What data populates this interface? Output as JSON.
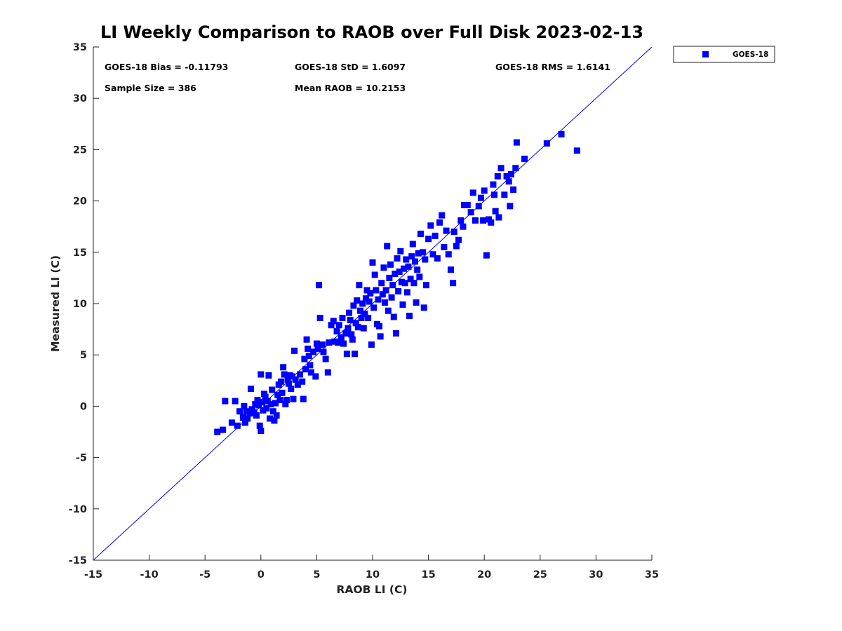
{
  "chart_data": {
    "type": "scatter",
    "title": "LI Weekly Comparison to RAOB over Full Disk 2023-02-13",
    "xlabel": "RAOB LI (C)",
    "ylabel": "Measured LI (C)",
    "xlim": [
      -15,
      35
    ],
    "ylim": [
      -15,
      35
    ],
    "xticks": [
      -15,
      -10,
      -5,
      0,
      5,
      10,
      15,
      20,
      25,
      30,
      35
    ],
    "yticks": [
      -15,
      -10,
      -5,
      0,
      5,
      10,
      15,
      20,
      25,
      30,
      35
    ],
    "grid": false,
    "legend_position": "outside-top-right",
    "reference_line": {
      "x": [
        -15,
        35
      ],
      "y": [
        -15,
        35
      ],
      "color": "#0000ff"
    },
    "stats": {
      "bias": "GOES-18 Bias = -0.11793",
      "std": "GOES-18 StD = 1.6097",
      "rms": "GOES-18 RMS = 1.6141",
      "sample_size": "Sample Size = 386",
      "mean_raob": "Mean RAOB = 10.2153"
    },
    "series": [
      {
        "name": "GOES-18",
        "color": "#0000ff",
        "marker": "square",
        "points": [
          [
            -3.9,
            -2.5
          ],
          [
            -3.4,
            -2.3
          ],
          [
            -3.2,
            0.5
          ],
          [
            -2.6,
            -1.6
          ],
          [
            -2.3,
            0.5
          ],
          [
            -2.1,
            -1.9
          ],
          [
            -1.9,
            -0.5
          ],
          [
            -1.6,
            -1.1
          ],
          [
            -1.5,
            0.0
          ],
          [
            -1.4,
            -1.6
          ],
          [
            -1.3,
            -0.5
          ],
          [
            -1.2,
            -1.2
          ],
          [
            -1.0,
            -0.7
          ],
          [
            -0.9,
            1.7
          ],
          [
            -0.8,
            -0.3
          ],
          [
            -0.6,
            -0.6
          ],
          [
            -0.5,
            0.2
          ],
          [
            -0.4,
            -0.9
          ],
          [
            -0.3,
            0.6
          ],
          [
            -0.2,
            0.1
          ],
          [
            -0.1,
            -1.9
          ],
          [
            0.0,
            -2.4
          ],
          [
            0.0,
            3.1
          ],
          [
            0.1,
            0.4
          ],
          [
            0.2,
            -0.4
          ],
          [
            0.3,
            1.2
          ],
          [
            0.4,
            0.9
          ],
          [
            0.5,
            -0.2
          ],
          [
            0.6,
            0.5
          ],
          [
            0.7,
            3.0
          ],
          [
            0.8,
            -1.2
          ],
          [
            0.9,
            0.2
          ],
          [
            1.0,
            1.6
          ],
          [
            1.1,
            -0.5
          ],
          [
            1.2,
            -1.4
          ],
          [
            1.3,
            0.3
          ],
          [
            1.4,
            -0.9
          ],
          [
            1.5,
            1.1
          ],
          [
            1.6,
            2.1
          ],
          [
            1.7,
            0.6
          ],
          [
            1.8,
            2.4
          ],
          [
            1.9,
            1.3
          ],
          [
            2.0,
            3.8
          ],
          [
            2.1,
            3.1
          ],
          [
            2.2,
            0.2
          ],
          [
            2.3,
            0.6
          ],
          [
            2.4,
            2.6
          ],
          [
            2.5,
            2.2
          ],
          [
            2.6,
            3.0
          ],
          [
            2.7,
            1.7
          ],
          [
            2.8,
            2.9
          ],
          [
            2.9,
            0.7
          ],
          [
            3.0,
            5.4
          ],
          [
            3.1,
            2.6
          ],
          [
            3.3,
            2.1
          ],
          [
            3.5,
            3.1
          ],
          [
            3.7,
            2.4
          ],
          [
            3.8,
            0.7
          ],
          [
            3.9,
            4.6
          ],
          [
            4.0,
            3.6
          ],
          [
            4.1,
            6.5
          ],
          [
            4.2,
            5.6
          ],
          [
            4.3,
            4.9
          ],
          [
            4.4,
            4.0
          ],
          [
            4.5,
            3.3
          ],
          [
            4.7,
            5.3
          ],
          [
            4.9,
            2.9
          ],
          [
            5.0,
            6.1
          ],
          [
            5.1,
            5.6
          ],
          [
            5.2,
            11.8
          ],
          [
            5.3,
            8.6
          ],
          [
            5.5,
            6.0
          ],
          [
            5.6,
            5.3
          ],
          [
            5.8,
            4.6
          ],
          [
            6.0,
            3.3
          ],
          [
            6.1,
            6.2
          ],
          [
            6.3,
            7.9
          ],
          [
            6.5,
            8.3
          ],
          [
            6.6,
            6.3
          ],
          [
            6.8,
            7.3
          ],
          [
            6.9,
            6.2
          ],
          [
            7.0,
            7.9
          ],
          [
            7.2,
            6.7
          ],
          [
            7.3,
            8.6
          ],
          [
            7.4,
            6.1
          ],
          [
            7.6,
            7.1
          ],
          [
            7.7,
            5.1
          ],
          [
            7.8,
            7.6
          ],
          [
            7.9,
            9.1
          ],
          [
            8.0,
            8.4
          ],
          [
            8.1,
            7.0
          ],
          [
            8.2,
            6.5
          ],
          [
            8.3,
            9.8
          ],
          [
            8.4,
            5.1
          ],
          [
            8.5,
            8.1
          ],
          [
            8.6,
            10.3
          ],
          [
            8.7,
            7.7
          ],
          [
            8.8,
            11.8
          ],
          [
            8.9,
            9.3
          ],
          [
            9.0,
            8.6
          ],
          [
            9.1,
            10.0
          ],
          [
            9.2,
            7.6
          ],
          [
            9.3,
            9.0
          ],
          [
            9.4,
            10.5
          ],
          [
            9.5,
            11.3
          ],
          [
            9.6,
            8.6
          ],
          [
            9.7,
            10.2
          ],
          [
            9.8,
            11.0
          ],
          [
            9.9,
            6.0
          ],
          [
            10.0,
            14.0
          ],
          [
            10.1,
            9.6
          ],
          [
            10.2,
            12.8
          ],
          [
            10.3,
            11.3
          ],
          [
            10.4,
            8.0
          ],
          [
            10.5,
            10.4
          ],
          [
            10.6,
            7.8
          ],
          [
            10.7,
            6.8
          ],
          [
            10.8,
            12.0
          ],
          [
            10.9,
            10.9
          ],
          [
            11.0,
            13.5
          ],
          [
            11.1,
            10.1
          ],
          [
            11.2,
            11.3
          ],
          [
            11.3,
            15.6
          ],
          [
            11.4,
            9.3
          ],
          [
            11.5,
            12.5
          ],
          [
            11.6,
            13.8
          ],
          [
            11.7,
            10.6
          ],
          [
            11.8,
            11.8
          ],
          [
            11.9,
            8.7
          ],
          [
            12.0,
            12.9
          ],
          [
            12.1,
            7.1
          ],
          [
            12.2,
            14.4
          ],
          [
            12.3,
            11.2
          ],
          [
            12.4,
            13.1
          ],
          [
            12.5,
            15.1
          ],
          [
            12.6,
            12.1
          ],
          [
            12.7,
            9.9
          ],
          [
            12.8,
            13.4
          ],
          [
            12.9,
            12.0
          ],
          [
            13.0,
            14.3
          ],
          [
            13.1,
            11.1
          ],
          [
            13.2,
            13.6
          ],
          [
            13.3,
            8.8
          ],
          [
            13.4,
            12.4
          ],
          [
            13.5,
            14.6
          ],
          [
            13.6,
            15.8
          ],
          [
            13.7,
            12.0
          ],
          [
            13.8,
            14.1
          ],
          [
            13.9,
            10.1
          ],
          [
            14.0,
            13.3
          ],
          [
            14.1,
            14.9
          ],
          [
            14.2,
            12.6
          ],
          [
            14.3,
            16.8
          ],
          [
            14.5,
            15.0
          ],
          [
            14.6,
            9.6
          ],
          [
            14.7,
            14.3
          ],
          [
            14.8,
            11.8
          ],
          [
            15.0,
            16.3
          ],
          [
            15.2,
            17.6
          ],
          [
            15.4,
            14.8
          ],
          [
            15.6,
            16.6
          ],
          [
            15.8,
            14.4
          ],
          [
            16.0,
            17.9
          ],
          [
            16.2,
            18.6
          ],
          [
            16.4,
            15.5
          ],
          [
            16.6,
            17.1
          ],
          [
            16.8,
            14.8
          ],
          [
            17.0,
            13.3
          ],
          [
            17.2,
            12.0
          ],
          [
            17.3,
            17.0
          ],
          [
            17.5,
            15.6
          ],
          [
            17.7,
            16.2
          ],
          [
            17.9,
            18.1
          ],
          [
            18.1,
            17.5
          ],
          [
            18.2,
            19.6
          ],
          [
            18.5,
            19.6
          ],
          [
            18.8,
            18.9
          ],
          [
            19.0,
            20.8
          ],
          [
            19.2,
            18.1
          ],
          [
            19.5,
            19.5
          ],
          [
            19.7,
            20.3
          ],
          [
            19.9,
            18.1
          ],
          [
            20.0,
            21.0
          ],
          [
            20.2,
            14.7
          ],
          [
            20.4,
            18.2
          ],
          [
            20.6,
            17.9
          ],
          [
            20.8,
            21.6
          ],
          [
            20.9,
            20.6
          ],
          [
            21.0,
            19.0
          ],
          [
            21.2,
            22.4
          ],
          [
            21.3,
            18.4
          ],
          [
            21.5,
            23.2
          ],
          [
            21.8,
            20.6
          ],
          [
            22.0,
            22.4
          ],
          [
            22.2,
            21.9
          ],
          [
            22.3,
            19.5
          ],
          [
            22.4,
            22.6
          ],
          [
            22.6,
            21.1
          ],
          [
            22.8,
            23.2
          ],
          [
            22.9,
            25.7
          ],
          [
            23.6,
            24.1
          ],
          [
            25.6,
            25.6
          ],
          [
            26.9,
            26.5
          ],
          [
            28.3,
            24.9
          ]
        ]
      }
    ]
  }
}
